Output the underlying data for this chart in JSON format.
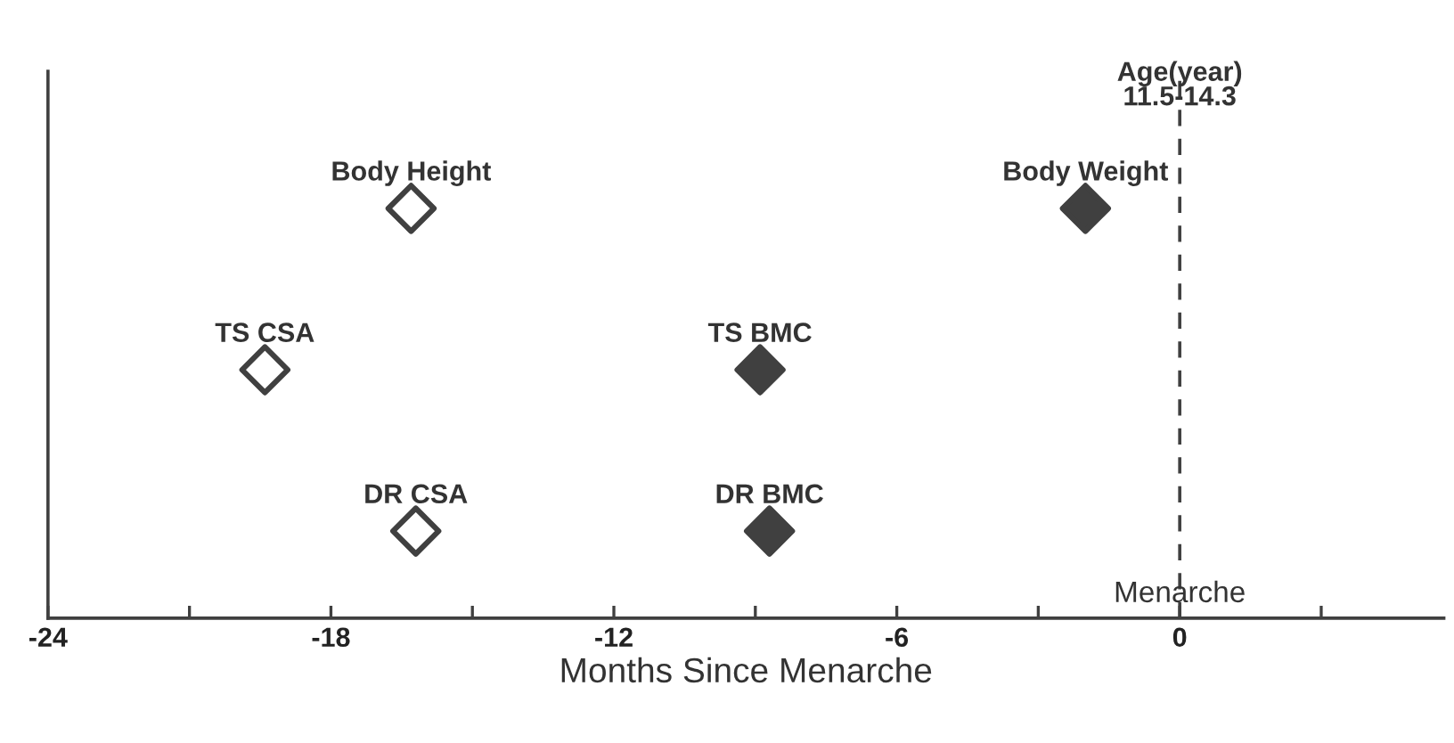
{
  "chart_data": {
    "type": "scatter",
    "orientation": "horizontal",
    "xlabel": "Months Since Menarche",
    "marker": "diamond",
    "grid": false,
    "categories": [
      null,
      null,
      null
    ],
    "xlim": [
      -24,
      5.6
    ],
    "xticks": [
      {
        "value": -24,
        "label": "-24"
      },
      {
        "value": -21,
        "label": null
      },
      {
        "value": -18,
        "label": "-18"
      },
      {
        "value": -15,
        "label": null
      },
      {
        "value": -12,
        "label": "-12"
      },
      {
        "value": -9,
        "label": null
      },
      {
        "value": -6,
        "label": "-6"
      },
      {
        "value": -3,
        "label": null
      },
      {
        "value": 0,
        "label": "0"
      },
      {
        "value": 3,
        "label": null
      }
    ],
    "series": [
      {
        "name": "Body Height",
        "color": "#ffffff",
        "values": [
          -16.3,
          null,
          null
        ]
      },
      {
        "name": "TS CSA",
        "color": "#ffffff",
        "values": [
          null,
          -19.4,
          null
        ]
      },
      {
        "name": "DR CSA",
        "color": "#ffffff",
        "values": [
          null,
          null,
          -16.2
        ]
      },
      {
        "name": "Body Weight",
        "color": "#404040",
        "values": [
          -2.0,
          null,
          null
        ]
      },
      {
        "name": "TS BMC",
        "color": "#404040",
        "values": [
          null,
          -8.9,
          null
        ]
      },
      {
        "name": "DR BMC",
        "color": "#404040",
        "values": [
          null,
          null,
          -8.7
        ]
      }
    ],
    "ref_lines": [
      {
        "axis": "x",
        "value": 0,
        "label": "Menarche",
        "color": "#404040",
        "line_style": "dashed"
      }
    ],
    "annotations": [
      {
        "text": "Age(year)\n11.5-14.3",
        "x": 0
      }
    ]
  }
}
